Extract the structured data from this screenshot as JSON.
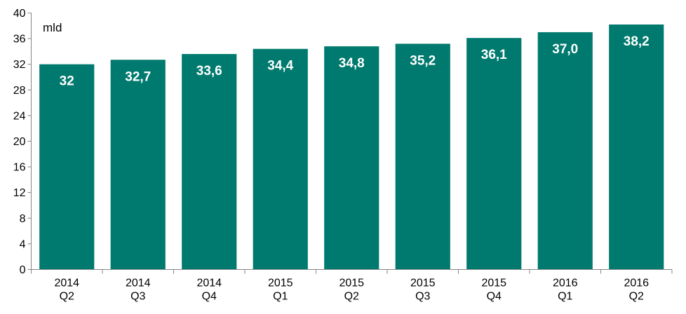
{
  "chart_data": {
    "type": "bar",
    "unit_label": "mld",
    "categories": [
      [
        "2014",
        "Q2"
      ],
      [
        "2014",
        "Q3"
      ],
      [
        "2014",
        "Q4"
      ],
      [
        "2015",
        "Q1"
      ],
      [
        "2015",
        "Q2"
      ],
      [
        "2015",
        "Q3"
      ],
      [
        "2015",
        "Q4"
      ],
      [
        "2016",
        "Q1"
      ],
      [
        "2016",
        "Q2"
      ]
    ],
    "values": [
      32,
      32.7,
      33.6,
      34.4,
      34.8,
      35.2,
      36.1,
      37.0,
      38.2
    ],
    "value_labels": [
      "32",
      "32,7",
      "33,6",
      "34,4",
      "34,8",
      "35,2",
      "36,1",
      "37,0",
      "38,2"
    ],
    "ylim": [
      0,
      40
    ],
    "yticks": [
      0,
      4,
      8,
      12,
      16,
      20,
      24,
      28,
      32,
      36,
      40
    ],
    "grid": false,
    "legend": "none",
    "title": "",
    "xlabel": "",
    "ylabel": "",
    "colors": {
      "bar": "#007A6E",
      "axis": "#868686",
      "bar_label": "#FFFFFF"
    }
  }
}
